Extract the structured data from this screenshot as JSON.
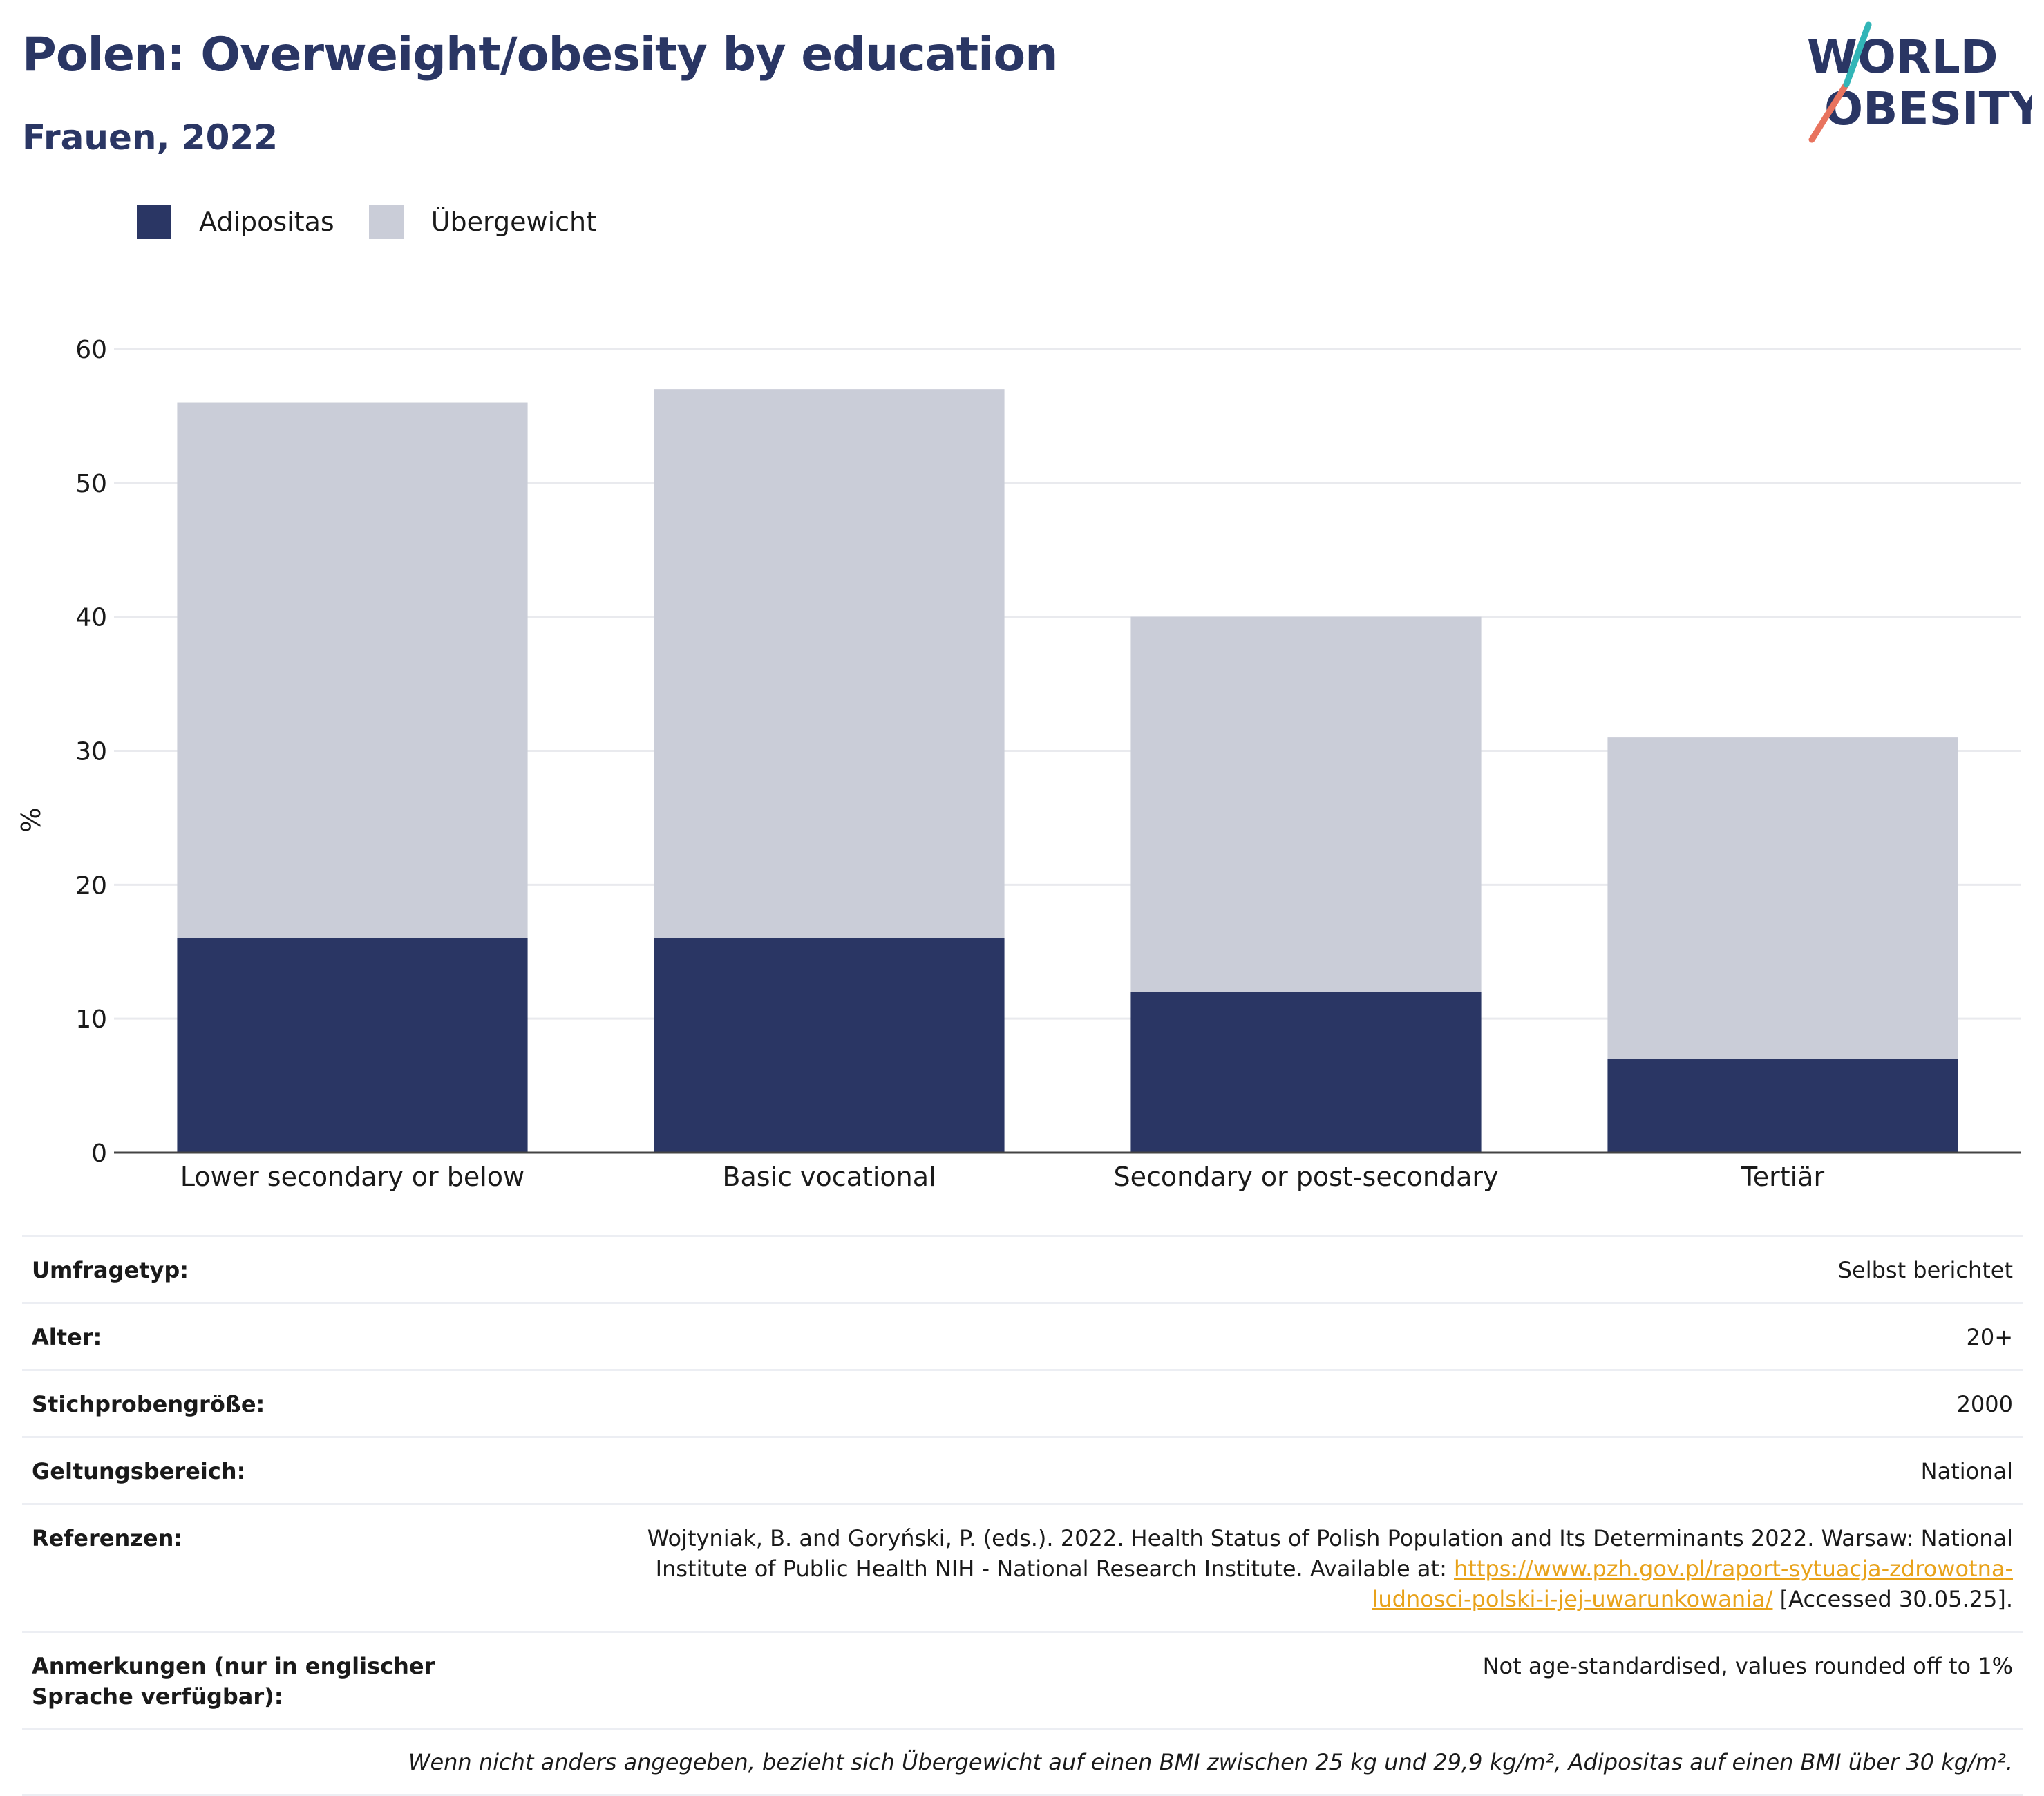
{
  "header": {
    "title": "Polen: Overweight/obesity by education",
    "subtitle": "Frauen, 2022"
  },
  "logo": {
    "line1": "WORLD",
    "line2": "OBESITY"
  },
  "colors": {
    "obesity": "#2a3664",
    "overweight": "#cacdd8",
    "axis": "#444444",
    "grid": "#e9eaee",
    "link": "#e8a21a"
  },
  "chart_data": {
    "type": "bar",
    "stacked": true,
    "categories": [
      "Lower secondary or below",
      "Basic vocational",
      "Secondary or post-secondary",
      "Tertiär"
    ],
    "series": [
      {
        "name": "Adipositas",
        "values": [
          16,
          16,
          12,
          7
        ]
      },
      {
        "name": "Übergewicht",
        "values": [
          40,
          41,
          28,
          24
        ]
      }
    ],
    "totals": [
      56,
      57,
      40,
      31
    ],
    "ylabel": "%",
    "ylim": [
      0,
      60
    ],
    "yticks": [
      0,
      10,
      20,
      30,
      40,
      50,
      60
    ],
    "grid": true,
    "legend_position": "top-left"
  },
  "info": {
    "rows": [
      {
        "label": "Umfragetyp:",
        "value": "Selbst berichtet"
      },
      {
        "label": "Alter:",
        "value": "20+"
      },
      {
        "label": "Stichprobengröße:",
        "value": "2000"
      },
      {
        "label": "Geltungsbereich:",
        "value": "National"
      }
    ],
    "ref_label": "Referenzen:",
    "ref_text_before": "Wojtyniak, B. and Goryński, P. (eds.). 2022. Health Status of Polish Population and Its Determinants 2022. Warsaw: National Institute of Public Health NIH - National Research Institute. Available at: ",
    "ref_link": "https://www.pzh.gov.pl/raport-sytuacja-zdrowotna-ludnosci-polski-i-jej-uwarunkowania/",
    "ref_text_after": " [Accessed 30.05.25].",
    "notes_label": "Anmerkungen (nur in englischer Sprache verfügbar):",
    "notes_value": "Not age-standardised, values rounded off to 1%",
    "footnote": "Wenn nicht anders angegeben, bezieht sich Übergewicht auf einen BMI zwischen 25 kg und 29,9 kg/m², Adipositas auf einen BMI über 30 kg/m²."
  }
}
